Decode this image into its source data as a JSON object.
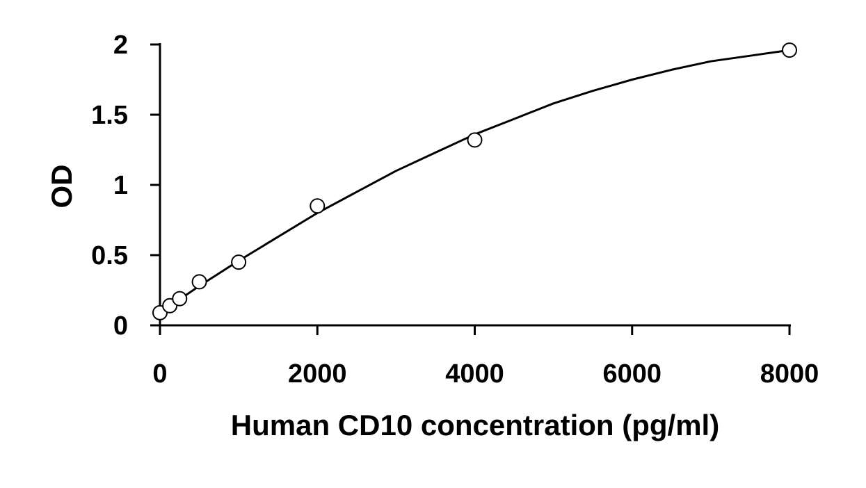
{
  "chart_data": {
    "type": "scatter",
    "title": "",
    "xlabel": "Human CD10 concentration (pg/ml)",
    "ylabel": "OD",
    "xlim": [
      0,
      8000
    ],
    "ylim": [
      0,
      2
    ],
    "xticks": [
      0,
      2000,
      4000,
      6000,
      8000
    ],
    "xtick_labels": [
      "0",
      "2000",
      "4000",
      "6000",
      "8000"
    ],
    "yticks": [
      0,
      0.5,
      1,
      1.5,
      2
    ],
    "ytick_labels": [
      "0",
      "0.5",
      "1",
      "1.5",
      "2"
    ],
    "grid": false,
    "legend": "none",
    "series": [
      {
        "marker": "open-circle",
        "x": [
          0,
          125,
          250,
          500,
          1000,
          2000,
          4000,
          8000
        ],
        "y": [
          0.09,
          0.14,
          0.19,
          0.31,
          0.45,
          0.85,
          1.32,
          1.96
        ]
      }
    ],
    "fit_curve": {
      "type": "quadratic",
      "x": [
        0,
        500,
        1000,
        1500,
        2000,
        2500,
        3000,
        3500,
        4000,
        4500,
        5000,
        5500,
        6000,
        6500,
        7000,
        7500,
        8000
      ],
      "y": [
        0.09,
        0.28,
        0.46,
        0.63,
        0.8,
        0.95,
        1.1,
        1.23,
        1.36,
        1.47,
        1.58,
        1.67,
        1.75,
        1.82,
        1.88,
        1.92,
        1.96
      ]
    },
    "colors": {
      "axis": "#000000",
      "marker_stroke": "#000000",
      "marker_fill": "#ffffff",
      "curve": "#000000"
    }
  }
}
